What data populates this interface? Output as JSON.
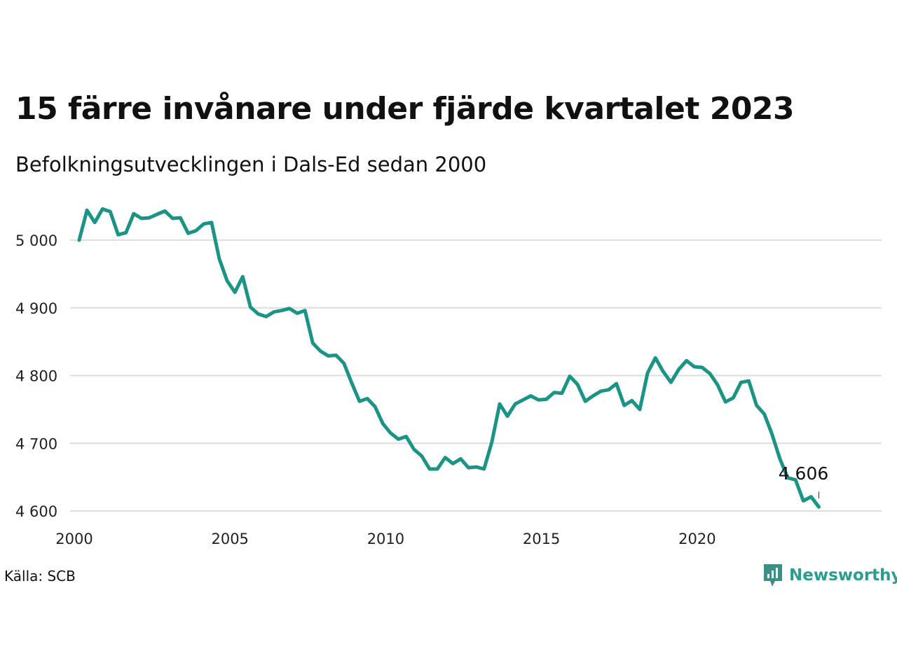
{
  "chart_data": {
    "type": "line",
    "title": "15 färre invånare under fjärde kvartalet 2023",
    "subtitle": "Befolkningsutvecklingen i Dals-Ed sedan 2000",
    "xlabel": "",
    "ylabel": "",
    "xlim": [
      2000,
      2024
    ],
    "ylim": [
      4600,
      5050
    ],
    "y_ticks": [
      4600,
      4700,
      4800,
      4900,
      5000
    ],
    "y_tick_labels": [
      "4 600",
      "4 700",
      "4 800",
      "4 900",
      "5 000"
    ],
    "x_ticks": [
      2000,
      2005,
      2010,
      2015,
      2020
    ],
    "x_tick_labels": [
      "2000",
      "2005",
      "2010",
      "2015",
      "2020"
    ],
    "grid": "horizontal",
    "line_color": "#1a9485",
    "series": [
      {
        "x": [
          2000.0,
          2000.25,
          2000.5,
          2000.75,
          2001.0,
          2001.25,
          2001.5,
          2001.75,
          2002.0,
          2002.25,
          2002.5,
          2002.75,
          2003.0,
          2003.25,
          2003.5,
          2003.75,
          2004.0,
          2004.25,
          2004.5,
          2004.75,
          2005.0,
          2005.25,
          2005.5,
          2005.75,
          2006.0,
          2006.25,
          2006.5,
          2006.75,
          2007.0,
          2007.25,
          2007.5,
          2007.75,
          2008.0,
          2008.25,
          2008.5,
          2008.75,
          2009.0,
          2009.25,
          2009.5,
          2009.75,
          2010.0,
          2010.25,
          2010.5,
          2010.75,
          2011.0,
          2011.25,
          2011.5,
          2011.75,
          2012.0,
          2012.25,
          2012.5,
          2012.75,
          2013.0,
          2013.25,
          2013.5,
          2013.75,
          2014.0,
          2014.25,
          2014.5,
          2014.75,
          2015.0,
          2015.25,
          2015.5,
          2015.75,
          2016.0,
          2016.25,
          2016.5,
          2016.75,
          2017.0,
          2017.25,
          2017.5,
          2017.75,
          2018.0,
          2018.25,
          2018.5,
          2018.75,
          2019.0,
          2019.25,
          2019.5,
          2019.75,
          2020.0,
          2020.25,
          2020.5,
          2020.75,
          2021.0,
          2021.25,
          2021.5,
          2021.75,
          2022.0,
          2022.25,
          2022.5,
          2022.75,
          2023.0,
          2023.25,
          2023.5,
          2023.75
        ],
        "values": [
          5000,
          5044,
          5026,
          5046,
          5042,
          5008,
          5011,
          5039,
          5032,
          5033,
          5038,
          5043,
          5032,
          5033,
          5010,
          5014,
          5024,
          5026,
          4972,
          4940,
          4923,
          4946,
          4901,
          4891,
          4887,
          4894,
          4896,
          4899,
          4892,
          4896,
          4848,
          4836,
          4829,
          4830,
          4818,
          4789,
          4762,
          4766,
          4754,
          4729,
          4715,
          4706,
          4710,
          4691,
          4681,
          4662,
          4662,
          4679,
          4670,
          4677,
          4664,
          4665,
          4662,
          4702,
          4758,
          4740,
          4758,
          4764,
          4770,
          4764,
          4765,
          4775,
          4774,
          4799,
          4787,
          4762,
          4770,
          4777,
          4779,
          4788,
          4756,
          4763,
          4750,
          4804,
          4826,
          4806,
          4790,
          4809,
          4822,
          4813,
          4812,
          4803,
          4786,
          4761,
          4767,
          4790,
          4792,
          4756,
          4743,
          4713,
          4677,
          4649,
          4646,
          4615,
          4621,
          4606
        ]
      }
    ],
    "end_label": "4 606"
  },
  "source": "Källa: SCB",
  "brand": {
    "name": "Newsworthy",
    "icon": "newsworthy-logo-icon",
    "color": "#3c8f84"
  }
}
